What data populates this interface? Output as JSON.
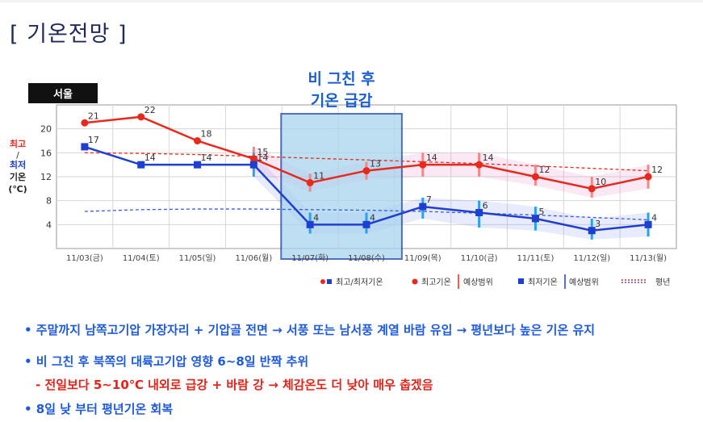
{
  "page": {
    "title": "[ 기온전망 ]"
  },
  "chart_data": {
    "type": "line",
    "region_label": "서울",
    "ylabel_max": "최고",
    "ylabel_sep": "/",
    "ylabel_min": "최저",
    "ylabel_main": "기온",
    "ylabel_unit": "(℃)",
    "ylim": [
      0,
      24
    ],
    "yticks": [
      4,
      8,
      12,
      16,
      20
    ],
    "grid": true,
    "categories": [
      "11/03(금)",
      "11/04(토)",
      "11/05(일)",
      "11/06(월)",
      "11/07(화)",
      "11/08(수)",
      "11/09(목)",
      "11/10(금)",
      "11/11(토)",
      "11/12(일)",
      "11/13(월)"
    ],
    "series": [
      {
        "name": "최고기온",
        "color": "#e8291c",
        "values": [
          21,
          22,
          18,
          15,
          11,
          13,
          14,
          14,
          12,
          10,
          12
        ],
        "ranges": [
          null,
          null,
          null,
          [
            13,
            17
          ],
          [
            9.5,
            12.5
          ],
          [
            11.5,
            14.5
          ],
          [
            12,
            16
          ],
          [
            12,
            16
          ],
          [
            10.5,
            14
          ],
          [
            8.5,
            12
          ],
          [
            10,
            14
          ]
        ]
      },
      {
        "name": "최저기온",
        "color": "#1f3fd1",
        "values": [
          17,
          14,
          14,
          14,
          4,
          4,
          7,
          6,
          5,
          3,
          4
        ],
        "ranges": [
          null,
          null,
          null,
          [
            12,
            16
          ],
          [
            2.5,
            6
          ],
          [
            2.5,
            6
          ],
          [
            5,
            8.5
          ],
          [
            3.5,
            8
          ],
          [
            3,
            7
          ],
          [
            1.5,
            5
          ],
          [
            2,
            6
          ]
        ]
      },
      {
        "name": "평년",
        "min_normal": [
          6.2,
          6.5,
          6.6,
          6.6,
          6.5,
          6.4,
          6.2,
          5.9,
          5.6,
          5.2,
          4.8
        ],
        "max_normal": [
          16.0,
          15.9,
          15.7,
          15.4,
          15.1,
          14.8,
          14.5,
          14.2,
          13.8,
          13.4,
          13.0
        ]
      }
    ],
    "annotation": {
      "line1": "비 그친 후",
      "line2": "기온 급감",
      "from_category": "11/07(화)",
      "to_category": "11/08(수)"
    },
    "legend": {
      "placement": "bottom-right",
      "items": [
        "최고/최저기온",
        "최고기온",
        "예상범위",
        "최저기온",
        "예상범위",
        "평년"
      ]
    }
  },
  "notes": {
    "b1": "• 주말까지 남쪽고기압 가장자리 + 기압골 전면 → 서풍 또는 남서풍 계열 바람 유입 → 평년보다 높은 기온 유지",
    "b2": "• 비 그친 후 북쪽의 대륙고기압 영향 6~8일 반짝 추위",
    "b3": "- 전일보다 5~10℃ 내외로 급강 + 바람 강 → 체감온도 더 낮아 매우 춥겠음",
    "b4": "• 8일 낮 부터 평년기온 회복"
  },
  "colors": {
    "max": "#e8291c",
    "min": "#1f3fd1",
    "highlight_fill": "#a9d3ee",
    "highlight_stroke": "#1a3fa8",
    "title": "#1f2a5a",
    "note_blue": "#1f5bd8",
    "note_red": "#e0231b"
  }
}
